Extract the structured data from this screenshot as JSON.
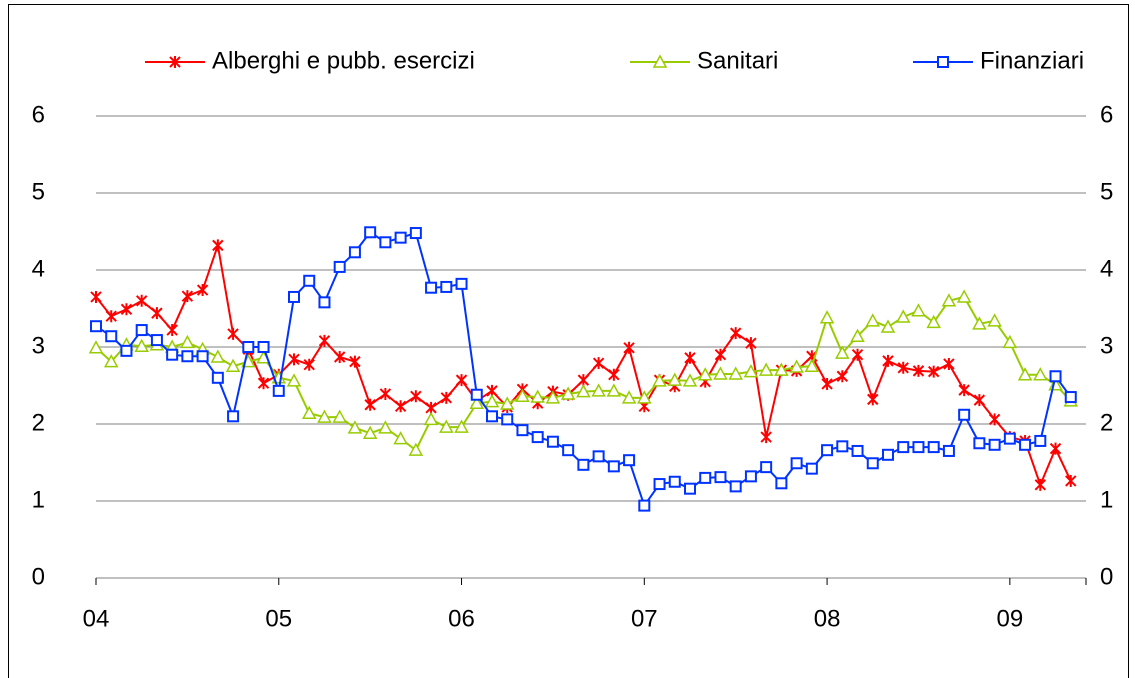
{
  "chart_data": {
    "type": "line",
    "categories": [
      "04",
      null,
      null,
      null,
      null,
      null,
      null,
      null,
      null,
      null,
      null,
      null,
      "05",
      null,
      null,
      null,
      null,
      null,
      null,
      null,
      null,
      null,
      null,
      null,
      "06",
      null,
      null,
      null,
      null,
      null,
      null,
      null,
      null,
      null,
      null,
      null,
      "07",
      null,
      null,
      null,
      null,
      null,
      null,
      null,
      null,
      null,
      null,
      null,
      "08",
      null,
      null,
      null,
      null,
      null,
      null,
      null,
      null,
      null,
      null,
      null,
      "09",
      null,
      null,
      null,
      null
    ],
    "series": [
      {
        "name": "Alberghi e pubb. esercizi",
        "color": "#ff0000",
        "marker": "x",
        "values": [
          3.65,
          3.4,
          3.49,
          3.6,
          3.44,
          3.22,
          3.66,
          3.74,
          4.32,
          3.17,
          2.97,
          2.53,
          2.64,
          2.84,
          2.77,
          3.08,
          2.87,
          2.81,
          2.25,
          2.39,
          2.23,
          2.36,
          2.21,
          2.34,
          2.57,
          2.3,
          2.43,
          2.22,
          2.45,
          2.27,
          2.42,
          2.38,
          2.57,
          2.79,
          2.64,
          2.99,
          2.23,
          2.57,
          2.49,
          2.86,
          2.55,
          2.9,
          3.18,
          3.05,
          1.83,
          2.7,
          2.69,
          2.88,
          2.52,
          2.62,
          2.9,
          2.32,
          2.82,
          2.73,
          2.69,
          2.68,
          2.78,
          2.44,
          2.31,
          2.06,
          1.83,
          1.78,
          1.21,
          1.68,
          1.26
        ]
      },
      {
        "name": "Sanitari",
        "color": "#99cc00",
        "marker": "triangle",
        "values": [
          2.99,
          2.81,
          3.03,
          3.01,
          3.03,
          3.0,
          3.06,
          2.97,
          2.87,
          2.75,
          2.81,
          2.86,
          2.6,
          2.56,
          2.14,
          2.09,
          2.09,
          1.95,
          1.88,
          1.95,
          1.81,
          1.66,
          2.06,
          1.96,
          1.96,
          2.27,
          2.29,
          2.26,
          2.36,
          2.35,
          2.34,
          2.39,
          2.42,
          2.43,
          2.43,
          2.34,
          2.34,
          2.56,
          2.57,
          2.56,
          2.64,
          2.65,
          2.65,
          2.68,
          2.7,
          2.7,
          2.74,
          2.75,
          3.38,
          2.92,
          3.14,
          3.34,
          3.26,
          3.39,
          3.47,
          3.32,
          3.6,
          3.65,
          3.3,
          3.34,
          3.06,
          2.64,
          2.64,
          2.51,
          2.3
        ]
      },
      {
        "name": "Finanziari",
        "color": "#0033ff",
        "marker": "square",
        "values": [
          3.27,
          3.14,
          2.95,
          3.22,
          3.09,
          2.9,
          2.88,
          2.88,
          2.6,
          2.1,
          3.0,
          3.0,
          2.43,
          3.65,
          3.86,
          3.58,
          4.04,
          4.23,
          4.49,
          4.36,
          4.42,
          4.48,
          3.77,
          3.78,
          3.82,
          2.38,
          2.1,
          2.06,
          1.92,
          1.83,
          1.77,
          1.66,
          1.47,
          1.58,
          1.45,
          1.53,
          0.94,
          1.22,
          1.25,
          1.16,
          1.3,
          1.31,
          1.19,
          1.32,
          1.44,
          1.23,
          1.49,
          1.42,
          1.66,
          1.71,
          1.65,
          1.49,
          1.6,
          1.7,
          1.7,
          1.7,
          1.65,
          2.12,
          1.75,
          1.73,
          1.81,
          1.73,
          1.78,
          2.62,
          2.35
        ]
      }
    ],
    "ylim": [
      0,
      6
    ],
    "yticks": [
      0,
      1,
      2,
      3,
      4,
      5,
      6
    ],
    "y2lim": [
      0,
      6
    ],
    "y2ticks": [
      0,
      1,
      2,
      3,
      4,
      5,
      6
    ],
    "grid": true
  }
}
